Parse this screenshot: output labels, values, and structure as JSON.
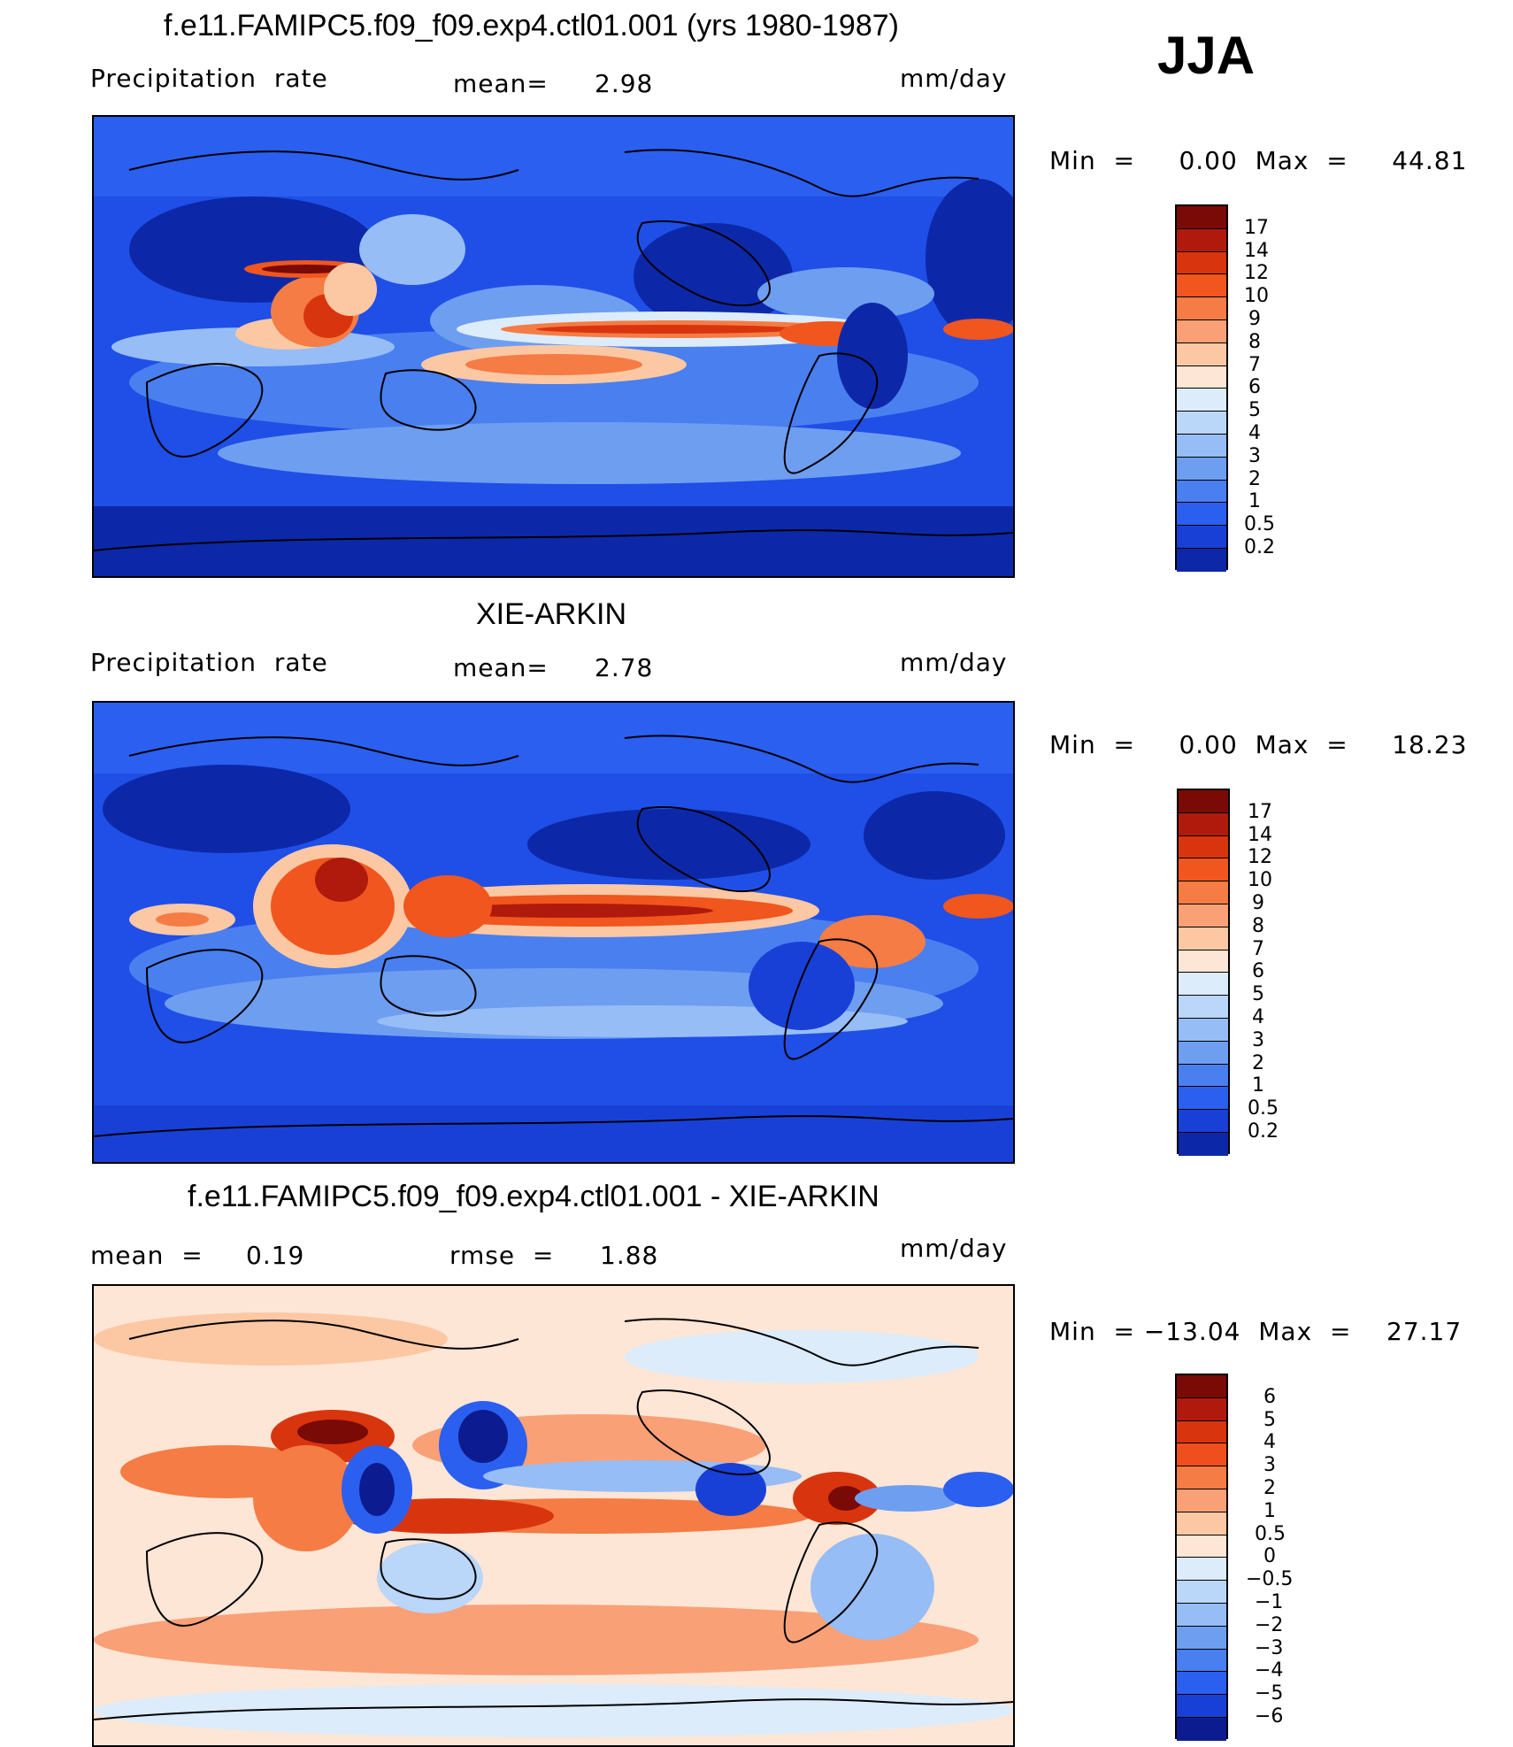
{
  "season": "JJA",
  "panels": [
    {
      "title": "f.e11.FAMIPC5.f09_f09.exp4.ctl01.001 (yrs 1980-1987)",
      "left_label": "Precipitation  rate",
      "center_label": "mean=",
      "center_value": "2.98",
      "units": "mm/day",
      "min_max": "Min  =     0.00  Max  =     44.81",
      "colorbar_ticks": [
        "17",
        "14",
        "12",
        "10",
        "9",
        "8",
        "7",
        "6",
        "5",
        "4",
        "3",
        "2",
        "1",
        "0.5",
        "0.2"
      ],
      "colors": [
        "#7a0a06",
        "#b01a0c",
        "#d8350f",
        "#f0561e",
        "#f57c44",
        "#f9a077",
        "#fcc8a4",
        "#fde6d6",
        "#dcecfb",
        "#bad6f8",
        "#96bdf5",
        "#6e9ef0",
        "#4a7ff0",
        "#2b5ff0",
        "#1940d6",
        "#0c28a8"
      ]
    },
    {
      "title": "XIE-ARKIN",
      "left_label": "Precipitation  rate",
      "center_label": "mean=",
      "center_value": "2.78",
      "units": "mm/day",
      "min_max": "Min  =     0.00  Max  =     18.23",
      "colorbar_ticks": [
        "17",
        "14",
        "12",
        "10",
        "9",
        "8",
        "7",
        "6",
        "5",
        "4",
        "3",
        "2",
        "1",
        "0.5",
        "0.2"
      ],
      "colors": [
        "#7a0a06",
        "#b01a0c",
        "#d8350f",
        "#f0561e",
        "#f57c44",
        "#f9a077",
        "#fcc8a4",
        "#fde6d6",
        "#dcecfb",
        "#bad6f8",
        "#96bdf5",
        "#6e9ef0",
        "#4a7ff0",
        "#2b5ff0",
        "#1940d6",
        "#0c28a8"
      ]
    },
    {
      "title": "f.e11.FAMIPC5.f09_f09.exp4.ctl01.001 - XIE-ARKIN",
      "left_label": "mean  =",
      "left_value": "0.19",
      "center_label": "rmse  =",
      "center_value": "1.88",
      "units": "mm/day",
      "min_max": "Min  = −13.04  Max  =    27.17",
      "colorbar_ticks": [
        "6",
        "5",
        "4",
        "3",
        "2",
        "1",
        "0.5",
        "0",
        "−0.5",
        "−1",
        "−2",
        "−3",
        "−4",
        "−5",
        "−6"
      ],
      "colors": [
        "#7a0a06",
        "#b01a0c",
        "#d8350f",
        "#ef4f1c",
        "#f57c44",
        "#f9a077",
        "#fcc8a4",
        "#fde6d6",
        "#dcecfb",
        "#bad6f8",
        "#96bdf5",
        "#6e9ef0",
        "#4a7ff0",
        "#2b5ff0",
        "#1940d6",
        "#0c1c90"
      ]
    }
  ]
}
